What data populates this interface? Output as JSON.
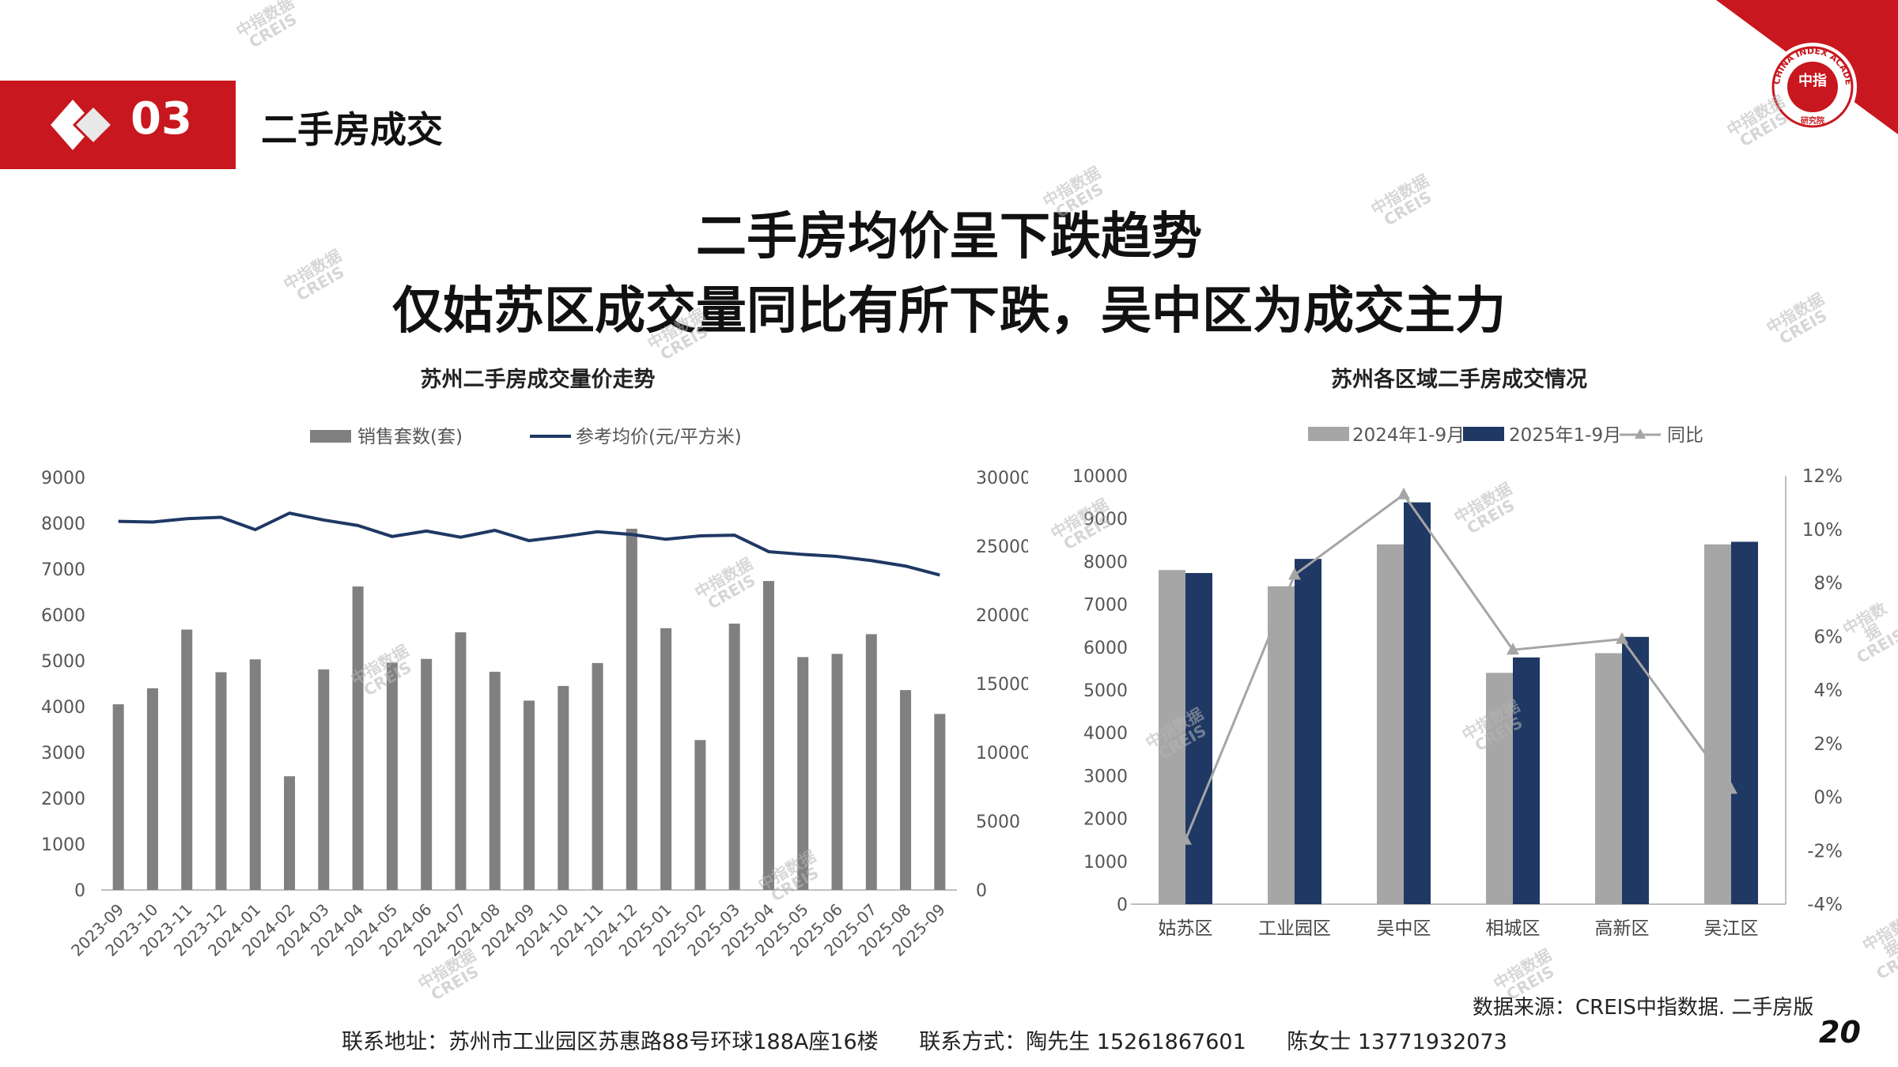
{
  "section": {
    "number": "03",
    "title": "二手房成交"
  },
  "logo": {
    "text_top": "CHINA INDEX ACADEMY",
    "text_center": "中指",
    "text_bottom": "研究院"
  },
  "headline": {
    "line1": "二手房均价呈下跌趋势",
    "line2": "仅姑苏区成交量同比有所下跌，吴中区为成交主力"
  },
  "watermark": {
    "cn": "中指数据",
    "en": "CREIS"
  },
  "colors": {
    "brand_red": "#c8171e",
    "bar_gray": "#808080",
    "bar_light_gray": "#a6a6a6",
    "navy": "#1f3864",
    "line_gray": "#a5a5a5"
  },
  "chart_data": [
    {
      "type": "bar",
      "title": "苏州二手房成交量价走势",
      "legend": [
        "销售套数(套)",
        "参考均价(元/平方米)"
      ],
      "categories": [
        "2023-09",
        "2023-10",
        "2023-11",
        "2023-12",
        "2024-01",
        "2024-02",
        "2024-03",
        "2024-04",
        "2024-05",
        "2024-06",
        "2024-07",
        "2024-08",
        "2024-09",
        "2024-10",
        "2024-11",
        "2024-12",
        "2025-01",
        "2025-02",
        "2025-03",
        "2025-04",
        "2025-05",
        "2025-06",
        "2025-07",
        "2025-08",
        "2025-09"
      ],
      "series": [
        {
          "name": "销售套数(套)",
          "type": "bar",
          "axis": "left",
          "values": [
            4050,
            4400,
            5680,
            4750,
            5030,
            2480,
            4810,
            6620,
            4960,
            5040,
            5620,
            4760,
            4130,
            4450,
            4950,
            7880,
            5710,
            3270,
            5810,
            6740,
            5080,
            5150,
            5580,
            4360,
            3840
          ]
        },
        {
          "name": "参考均价(元/平方米)",
          "type": "line",
          "axis": "right",
          "values": [
            26800,
            26750,
            27000,
            27100,
            26200,
            27400,
            26900,
            26500,
            25700,
            26100,
            25650,
            26150,
            25400,
            25700,
            26050,
            25850,
            25500,
            25750,
            25800,
            24600,
            24400,
            24250,
            23950,
            23550,
            22900
          ]
        }
      ],
      "y_left": {
        "min": 0,
        "max": 9000,
        "ticks": [
          "0",
          "1000",
          "2000",
          "3000",
          "4000",
          "5000",
          "6000",
          "7000",
          "8000",
          "9000"
        ]
      },
      "y_right": {
        "min": 0,
        "max": 30000,
        "ticks": [
          "0",
          "5000",
          "10000",
          "15000",
          "20000",
          "25000",
          "30000"
        ]
      },
      "grid": false,
      "legend_position": "top"
    },
    {
      "type": "bar",
      "title": "苏州各区域二手房成交情况",
      "legend": [
        "2024年1-9月",
        "2025年1-9月",
        "同比"
      ],
      "categories": [
        "姑苏区",
        "工业园区",
        "吴中区",
        "相城区",
        "高新区",
        "吴江区"
      ],
      "series": [
        {
          "name": "2024年1-9月",
          "type": "bar",
          "axis": "left",
          "values": [
            7800,
            7420,
            8400,
            5400,
            5860,
            8400
          ]
        },
        {
          "name": "2025年1-9月",
          "type": "bar",
          "axis": "left",
          "values": [
            7730,
            8060,
            9380,
            5760,
            6240,
            8460
          ]
        },
        {
          "name": "同比",
          "type": "line",
          "axis": "right",
          "values": [
            -1.6,
            8.3,
            11.3,
            5.5,
            5.9,
            0.3
          ]
        }
      ],
      "y_left": {
        "min": 0,
        "max": 10000,
        "ticks": [
          "0",
          "1000",
          "2000",
          "3000",
          "4000",
          "5000",
          "6000",
          "7000",
          "8000",
          "9000",
          "10000"
        ]
      },
      "y_right": {
        "min": -4,
        "max": 12,
        "ticks": [
          "-4%",
          "-2%",
          "0%",
          "2%",
          "4%",
          "6%",
          "8%",
          "10%",
          "12%"
        ]
      },
      "grid": false,
      "legend_position": "top"
    }
  ],
  "footer": {
    "source": "数据来源：CREIS中指数据. 二手房版",
    "contact": "联系地址：苏州市工业园区苏惠路88号环球188A座16楼      联系方式：陶先生 15261867601      陈女士 13771932073",
    "page": "20"
  }
}
